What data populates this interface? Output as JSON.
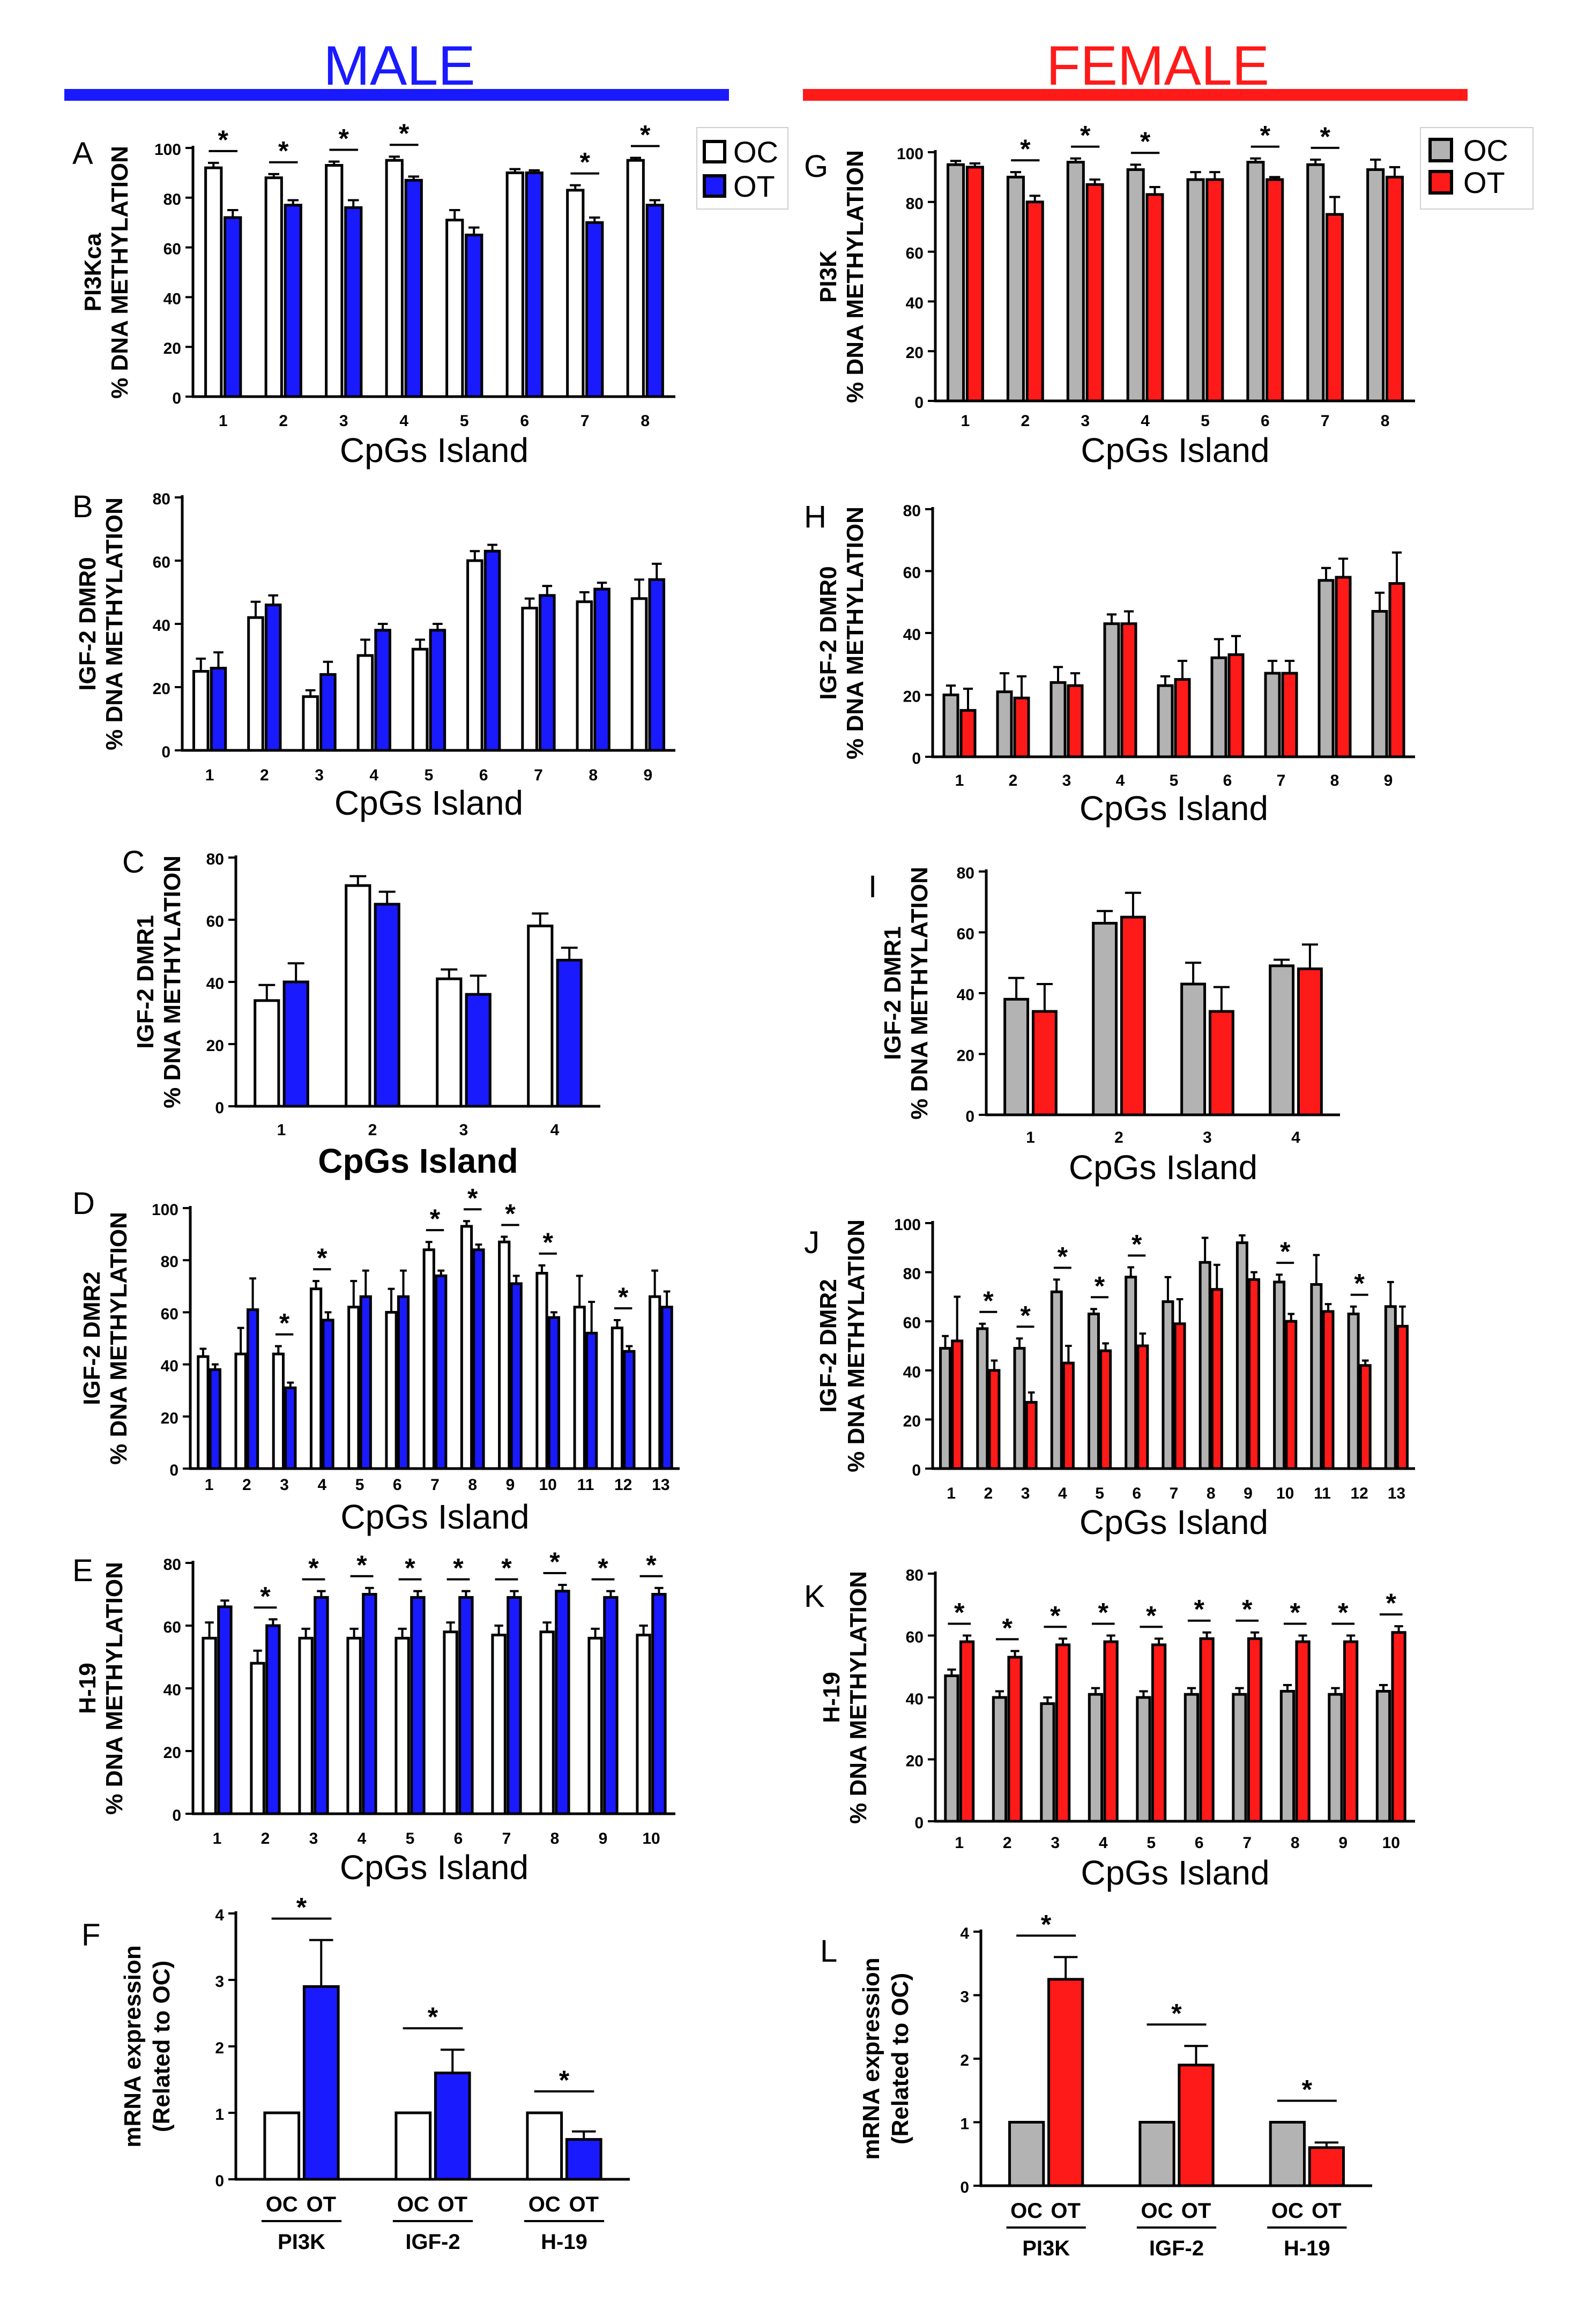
{
  "headers": {
    "male": {
      "label": "MALE",
      "color": "#1a1aff"
    },
    "female": {
      "label": "FEMALE",
      "color": "#ff1a1a"
    }
  },
  "legend_male": {
    "oc": "OC",
    "ot": "OT"
  },
  "legend_female": {
    "oc": "OC",
    "ot": "OT"
  },
  "colors": {
    "male_oc": "#ffffff",
    "male_ot": "#1a1aff",
    "female_oc": "#b3b3b3",
    "female_ot": "#ff1a1a",
    "line": "#000000"
  },
  "chart_data": [
    {
      "id": "A",
      "type": "bar",
      "ylabel_line1": "PI3Kca",
      "ylabel_line2": "% DNA METHYLATION",
      "xlabel": "CpGs Island",
      "categories": [
        "1",
        "2",
        "3",
        "4",
        "5",
        "6",
        "7",
        "8"
      ],
      "ylim": [
        0,
        100
      ],
      "yticks": [
        0,
        20,
        40,
        60,
        80,
        100
      ],
      "series": [
        {
          "name": "OC",
          "values": [
            92,
            88,
            93,
            95,
            71,
            90,
            83,
            95
          ],
          "errors": [
            2,
            1.5,
            1.5,
            1.5,
            4,
            1.5,
            2,
            1
          ]
        },
        {
          "name": "OT",
          "values": [
            72,
            77,
            76,
            87,
            65,
            90,
            70,
            77
          ],
          "errors": [
            3,
            2,
            3,
            1.5,
            3,
            1,
            2,
            2
          ]
        }
      ],
      "significant": [
        "1",
        "2",
        "3",
        "4",
        "7",
        "8"
      ]
    },
    {
      "id": "B",
      "type": "bar",
      "ylabel_line1": "IGF-2 DMR0",
      "ylabel_line2": "% DNA METHYLATION",
      "xlabel": "CpGs Island",
      "categories": [
        "1",
        "2",
        "3",
        "4",
        "5",
        "6",
        "7",
        "8",
        "9"
      ],
      "ylim": [
        0,
        80
      ],
      "yticks": [
        0,
        20,
        40,
        60,
        80
      ],
      "series": [
        {
          "name": "OC",
          "values": [
            25,
            42,
            17,
            30,
            32,
            60,
            45,
            47,
            48
          ],
          "errors": [
            4,
            5,
            2,
            5,
            3,
            3,
            3,
            3,
            6
          ]
        },
        {
          "name": "OT",
          "values": [
            26,
            46,
            24,
            38,
            38,
            63,
            49,
            51,
            54
          ],
          "errors": [
            5,
            3,
            4,
            2,
            2,
            2,
            3,
            2,
            5
          ]
        }
      ],
      "significant": []
    },
    {
      "id": "C",
      "type": "bar",
      "ylabel_line1": "IGF-2 DMR1",
      "ylabel_line2": "% DNA METHYLATION",
      "xlabel": "CpGs Island",
      "categories": [
        "1",
        "2",
        "3",
        "4"
      ],
      "ylim": [
        0,
        80
      ],
      "yticks": [
        0,
        20,
        40,
        60,
        80
      ],
      "series": [
        {
          "name": "OC",
          "values": [
            34,
            71,
            41,
            58
          ],
          "errors": [
            5,
            3,
            3,
            4
          ]
        },
        {
          "name": "OT",
          "values": [
            40,
            65,
            36,
            47
          ],
          "errors": [
            6,
            4,
            6,
            4
          ]
        }
      ],
      "significant": []
    },
    {
      "id": "D",
      "type": "bar",
      "ylabel_line1": "IGF-2 DMR2",
      "ylabel_line2": "% DNA METHYLATION",
      "xlabel": "CpGs Island",
      "categories": [
        "1",
        "2",
        "3",
        "4",
        "5",
        "6",
        "7",
        "8",
        "9",
        "10",
        "11",
        "12",
        "13"
      ],
      "ylim": [
        0,
        100
      ],
      "yticks": [
        0,
        20,
        40,
        60,
        80,
        100
      ],
      "series": [
        {
          "name": "OC",
          "values": [
            43,
            44,
            44,
            69,
            62,
            60,
            84,
            93,
            87,
            75,
            62,
            54,
            66
          ],
          "errors": [
            3,
            10,
            3,
            3,
            10,
            9,
            3,
            2,
            2,
            3,
            12,
            3,
            10
          ]
        },
        {
          "name": "OT",
          "values": [
            38,
            61,
            31,
            57,
            66,
            66,
            74,
            84,
            71,
            58,
            52,
            45,
            62
          ],
          "errors": [
            2,
            12,
            2,
            3,
            10,
            10,
            2,
            2,
            3,
            2,
            12,
            2,
            6
          ]
        }
      ],
      "significant": [
        "3",
        "4",
        "7",
        "8",
        "9",
        "10",
        "12"
      ]
    },
    {
      "id": "E",
      "type": "bar",
      "ylabel_line1": "H-19",
      "ylabel_line2": "% DNA METHYLATION",
      "xlabel": "CpGs Island",
      "categories": [
        "1",
        "2",
        "3",
        "4",
        "5",
        "6",
        "7",
        "8",
        "9",
        "10"
      ],
      "ylim": [
        0,
        80
      ],
      "yticks": [
        0,
        20,
        40,
        60,
        80
      ],
      "series": [
        {
          "name": "OC",
          "values": [
            56,
            48,
            56,
            56,
            56,
            58,
            57,
            58,
            56,
            57
          ],
          "errors": [
            5,
            4,
            3,
            3,
            3,
            3,
            3,
            3,
            3,
            3
          ]
        },
        {
          "name": "OT",
          "values": [
            66,
            60,
            69,
            70,
            69,
            69,
            69,
            71,
            69,
            70
          ],
          "errors": [
            2,
            2,
            2,
            2,
            2,
            2,
            2,
            2,
            2,
            2
          ]
        }
      ],
      "significant": [
        "2",
        "3",
        "4",
        "5",
        "6",
        "7",
        "8",
        "9",
        "10"
      ]
    },
    {
      "id": "F",
      "type": "bar",
      "ylabel_line1": "mRNA expression",
      "ylabel_line2": "(Related to OC)",
      "xlabel": "",
      "categories": [
        "PI3K",
        "IGF-2",
        "H-19"
      ],
      "ylim": [
        0,
        4
      ],
      "yticks": [
        0,
        1,
        2,
        3,
        4
      ],
      "bar_labels": [
        "OC",
        "OT"
      ],
      "series": [
        {
          "name": "OC",
          "values": [
            1,
            1,
            1
          ],
          "errors": [
            0,
            0,
            0
          ]
        },
        {
          "name": "OT",
          "values": [
            2.9,
            1.6,
            0.6
          ],
          "errors": [
            0.7,
            0.35,
            0.12
          ]
        }
      ],
      "significant": [
        "PI3K",
        "IGF-2",
        "H-19"
      ]
    },
    {
      "id": "G",
      "type": "bar",
      "ylabel_line1": "PI3K",
      "ylabel_line2": "% DNA METHYLATION",
      "xlabel": "CpGs Island",
      "categories": [
        "1",
        "2",
        "3",
        "4",
        "5",
        "6",
        "7",
        "8"
      ],
      "ylim": [
        0,
        100
      ],
      "yticks": [
        0,
        20,
        40,
        60,
        80,
        100
      ],
      "series": [
        {
          "name": "OC",
          "values": [
            95,
            90,
            96,
            93,
            89,
            96,
            95,
            93
          ],
          "errors": [
            1.5,
            2,
            1.5,
            2,
            3,
            1.5,
            2,
            4
          ]
        },
        {
          "name": "OT",
          "values": [
            94,
            80,
            87,
            83,
            89,
            89,
            75,
            90
          ],
          "errors": [
            1.5,
            2.5,
            2,
            3,
            3,
            1,
            7,
            4
          ]
        }
      ],
      "significant": [
        "2",
        "3",
        "4",
        "6",
        "7"
      ]
    },
    {
      "id": "H",
      "type": "bar",
      "ylabel_line1": "IGF-2 DMR0",
      "ylabel_line2": "% DNA METHYLATION",
      "xlabel": "CpGs Island",
      "categories": [
        "1",
        "2",
        "3",
        "4",
        "5",
        "6",
        "7",
        "8",
        "9"
      ],
      "ylim": [
        0,
        80
      ],
      "yticks": [
        0,
        20,
        40,
        60,
        80
      ],
      "series": [
        {
          "name": "OC",
          "values": [
            20,
            21,
            24,
            43,
            23,
            32,
            27,
            57,
            47
          ],
          "errors": [
            3,
            6,
            5,
            3,
            3,
            6,
            4,
            4,
            6
          ]
        },
        {
          "name": "OT",
          "values": [
            15,
            19,
            23,
            43,
            25,
            33,
            27,
            58,
            56
          ],
          "errors": [
            7,
            7,
            4,
            4,
            6,
            6,
            4,
            6,
            10
          ]
        }
      ],
      "significant": []
    },
    {
      "id": "I",
      "type": "bar",
      "ylabel_line1": "IGF-2 DMR1",
      "ylabel_line2": "% DNA METHYLATION",
      "xlabel": "CpGs Island",
      "categories": [
        "1",
        "2",
        "3",
        "4"
      ],
      "ylim": [
        0,
        80
      ],
      "yticks": [
        0,
        20,
        40,
        60,
        80
      ],
      "series": [
        {
          "name": "OC",
          "values": [
            38,
            63,
            43,
            49
          ],
          "errors": [
            7,
            4,
            7,
            2
          ]
        },
        {
          "name": "OT",
          "values": [
            34,
            65,
            34,
            48
          ],
          "errors": [
            9,
            8,
            8,
            8
          ]
        }
      ],
      "significant": []
    },
    {
      "id": "J",
      "type": "bar",
      "ylabel_line1": "IGF-2 DMR2",
      "ylabel_line2": "% DNA METHYLATION",
      "xlabel": "CpGs Island",
      "categories": [
        "1",
        "2",
        "3",
        "4",
        "5",
        "6",
        "7",
        "8",
        "9",
        "10",
        "11",
        "12",
        "13"
      ],
      "ylim": [
        0,
        100
      ],
      "yticks": [
        0,
        20,
        40,
        60,
        80,
        100
      ],
      "series": [
        {
          "name": "OC",
          "values": [
            49,
            57,
            49,
            72,
            63,
            78,
            68,
            84,
            92,
            76,
            75,
            63,
            66
          ],
          "errors": [
            5,
            2,
            4,
            5,
            2,
            4,
            10,
            10,
            3,
            3,
            12,
            3,
            10
          ]
        },
        {
          "name": "OT",
          "values": [
            52,
            40,
            27,
            43,
            48,
            50,
            59,
            73,
            77,
            60,
            64,
            42,
            58
          ],
          "errors": [
            18,
            4,
            4,
            7,
            3,
            5,
            10,
            10,
            3,
            3,
            3,
            2,
            8
          ]
        }
      ],
      "significant": [
        "2",
        "3",
        "4",
        "5",
        "6",
        "10",
        "12"
      ]
    },
    {
      "id": "K",
      "type": "bar",
      "ylabel_line1": "H-19",
      "ylabel_line2": "% DNA METHYLATION",
      "xlabel": "CpGs Island",
      "categories": [
        "1",
        "2",
        "3",
        "4",
        "5",
        "6",
        "7",
        "8",
        "9",
        "10"
      ],
      "ylim": [
        0,
        80
      ],
      "yticks": [
        0,
        20,
        40,
        60,
        80
      ],
      "series": [
        {
          "name": "OC",
          "values": [
            47,
            40,
            38,
            41,
            40,
            41,
            41,
            42,
            41,
            42
          ],
          "errors": [
            2,
            2,
            2,
            2,
            2,
            2,
            2,
            2,
            2,
            2
          ]
        },
        {
          "name": "OT",
          "values": [
            58,
            53,
            57,
            58,
            57,
            59,
            59,
            58,
            58,
            61
          ],
          "errors": [
            2,
            2,
            2,
            2,
            2,
            2,
            2,
            2,
            2,
            2
          ]
        }
      ],
      "significant": [
        "1",
        "2",
        "3",
        "4",
        "5",
        "6",
        "7",
        "8",
        "9",
        "10"
      ]
    },
    {
      "id": "L",
      "type": "bar",
      "ylabel_line1": "mRNA expression",
      "ylabel_line2": "(Related to OC)",
      "xlabel": "",
      "categories": [
        "PI3K",
        "IGF-2",
        "H-19"
      ],
      "ylim": [
        0,
        4
      ],
      "yticks": [
        0,
        1,
        2,
        3,
        4
      ],
      "bar_labels": [
        "OC",
        "OT"
      ],
      "series": [
        {
          "name": "OC",
          "values": [
            1,
            1,
            1
          ],
          "errors": [
            0,
            0,
            0
          ]
        },
        {
          "name": "OT",
          "values": [
            3.25,
            1.9,
            0.6
          ],
          "errors": [
            0.35,
            0.3,
            0.08
          ]
        }
      ],
      "significant": [
        "PI3K",
        "IGF-2",
        "H-19"
      ]
    }
  ]
}
